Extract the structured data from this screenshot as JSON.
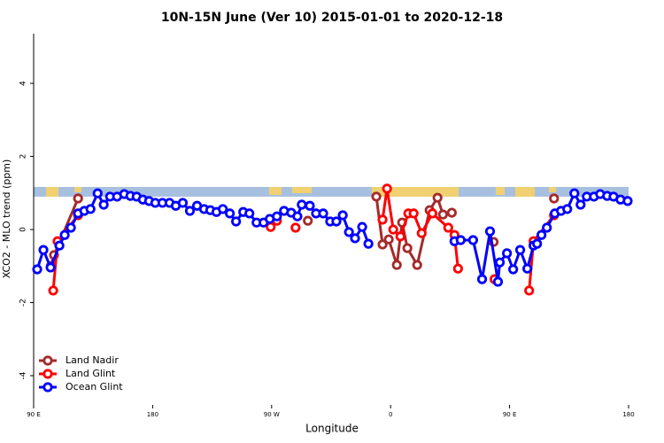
{
  "chart_data": {
    "type": "line",
    "title": "10N-15N June (Ver 10)   2015-01-01 to 2020-12-18",
    "x_label": "Longitude",
    "y_label": "XCO2 - MLO trend (ppm)",
    "xlim": [
      90,
      540
    ],
    "ylim": [
      -4.8,
      5.36
    ],
    "xticks": [
      {
        "value": 90,
        "label": "90 E"
      },
      {
        "value": 180,
        "label": "180"
      },
      {
        "value": 270,
        "label": "90 W"
      },
      {
        "value": 360,
        "label": "0"
      },
      {
        "value": 450,
        "label": "90 E"
      },
      {
        "value": 540,
        "label": "180"
      }
    ],
    "yticks": [
      -4,
      -2,
      0,
      2,
      4
    ],
    "legend": "bottom-left",
    "series": [
      {
        "name": "Land Nadir",
        "color": "#a52a2a",
        "x": [
          103,
          105.4,
          123.6,
          null,
          297.4,
          null,
          349.2,
          353.9,
          358.6,
          364.7,
          368.7,
          372.7,
          380.1,
          389.5,
          395.5,
          399.6,
          406.3,
          null,
          437.9,
          null,
          483.6
        ],
        "values": [
          -1.0,
          -0.7,
          0.85,
          null,
          0.24,
          null,
          0.9,
          -0.41,
          -0.27,
          -0.97,
          0.19,
          -0.51,
          -0.97,
          0.53,
          0.87,
          0.41,
          0.46,
          null,
          -0.34,
          null,
          0.85
        ]
      },
      {
        "name": "Land Glint",
        "color": "#ff0000",
        "x": [
          104.8,
          108.1,
          123.6,
          null,
          269.3,
          274,
          null,
          288.1,
          null,
          353.9,
          357.3,
          362,
          367.4,
          373.4,
          377.4,
          383.5,
          391.6,
          403.6,
          408.3,
          411,
          null,
          438.6,
          null,
          464.8,
          468.1,
          483.6
        ],
        "values": [
          -1.67,
          -0.32,
          0.39,
          null,
          0.07,
          0.24,
          null,
          0.05,
          null,
          0.27,
          1.12,
          0,
          -0.19,
          0.44,
          0.44,
          -0.1,
          0.44,
          0.05,
          -0.15,
          -1.07,
          null,
          -1.36,
          null,
          -1.67,
          -0.32,
          0.39
        ]
      },
      {
        "name": "Ocean Glint",
        "color": "#0000ff",
        "x": [
          92.7,
          97.4,
          102.8,
          109.5,
          113.5,
          118.2,
          123.6,
          128.3,
          133,
          138.4,
          143,
          147.8,
          153.1,
          158.5,
          163.2,
          167.9,
          172.6,
          177.3,
          182,
          187.4,
          192.8,
          197.5,
          202.8,
          208.2,
          213.6,
          218.9,
          223.6,
          228.3,
          233.1,
          238.4,
          243.1,
          248.5,
          253.2,
          258.6,
          263.9,
          268.6,
          274,
          279.4,
          284.8,
          289.5,
          292.8,
          298.9,
          303.6,
          309,
          314.3,
          319,
          323.8,
          328.5,
          333.1,
          338.5,
          343.2,
          null,
          408.3,
          413,
          422.4,
          429.2,
          435.2,
          441.2,
          442.6,
          448,
          452.7,
          458,
          463.4,
          468.1,
          470.8,
          474.1,
          478.2,
          484.2,
          488.9,
          493.6,
          499,
          503.7,
          508.4,
          513.8,
          518.5,
          523.8,
          528.6,
          533.9,
          539.3
        ],
        "values": [
          -1.09,
          -0.56,
          -1.04,
          -0.44,
          -0.15,
          0.05,
          0.44,
          0.51,
          0.56,
          0.99,
          0.68,
          0.9,
          0.9,
          0.97,
          0.92,
          0.9,
          0.82,
          0.78,
          0.73,
          0.73,
          0.73,
          0.65,
          0.73,
          0.51,
          0.65,
          0.56,
          0.53,
          0.48,
          0.56,
          0.44,
          0.22,
          0.48,
          0.44,
          0.19,
          0.19,
          0.29,
          0.36,
          0.51,
          0.46,
          0.36,
          0.68,
          0.65,
          0.44,
          0.44,
          0.22,
          0.22,
          0.39,
          -0.07,
          -0.24,
          0.07,
          -0.39,
          null,
          -0.32,
          -0.29,
          -0.29,
          -1.36,
          -0.05,
          -1.43,
          -0.9,
          -0.65,
          -1.09,
          -0.56,
          -1.07,
          -0.44,
          -0.39,
          -0.15,
          0.05,
          0.44,
          0.51,
          0.56,
          0.99,
          0.68,
          0.9,
          0.9,
          0.97,
          0.92,
          0.9,
          0.82,
          0.78
        ]
      }
    ]
  }
}
